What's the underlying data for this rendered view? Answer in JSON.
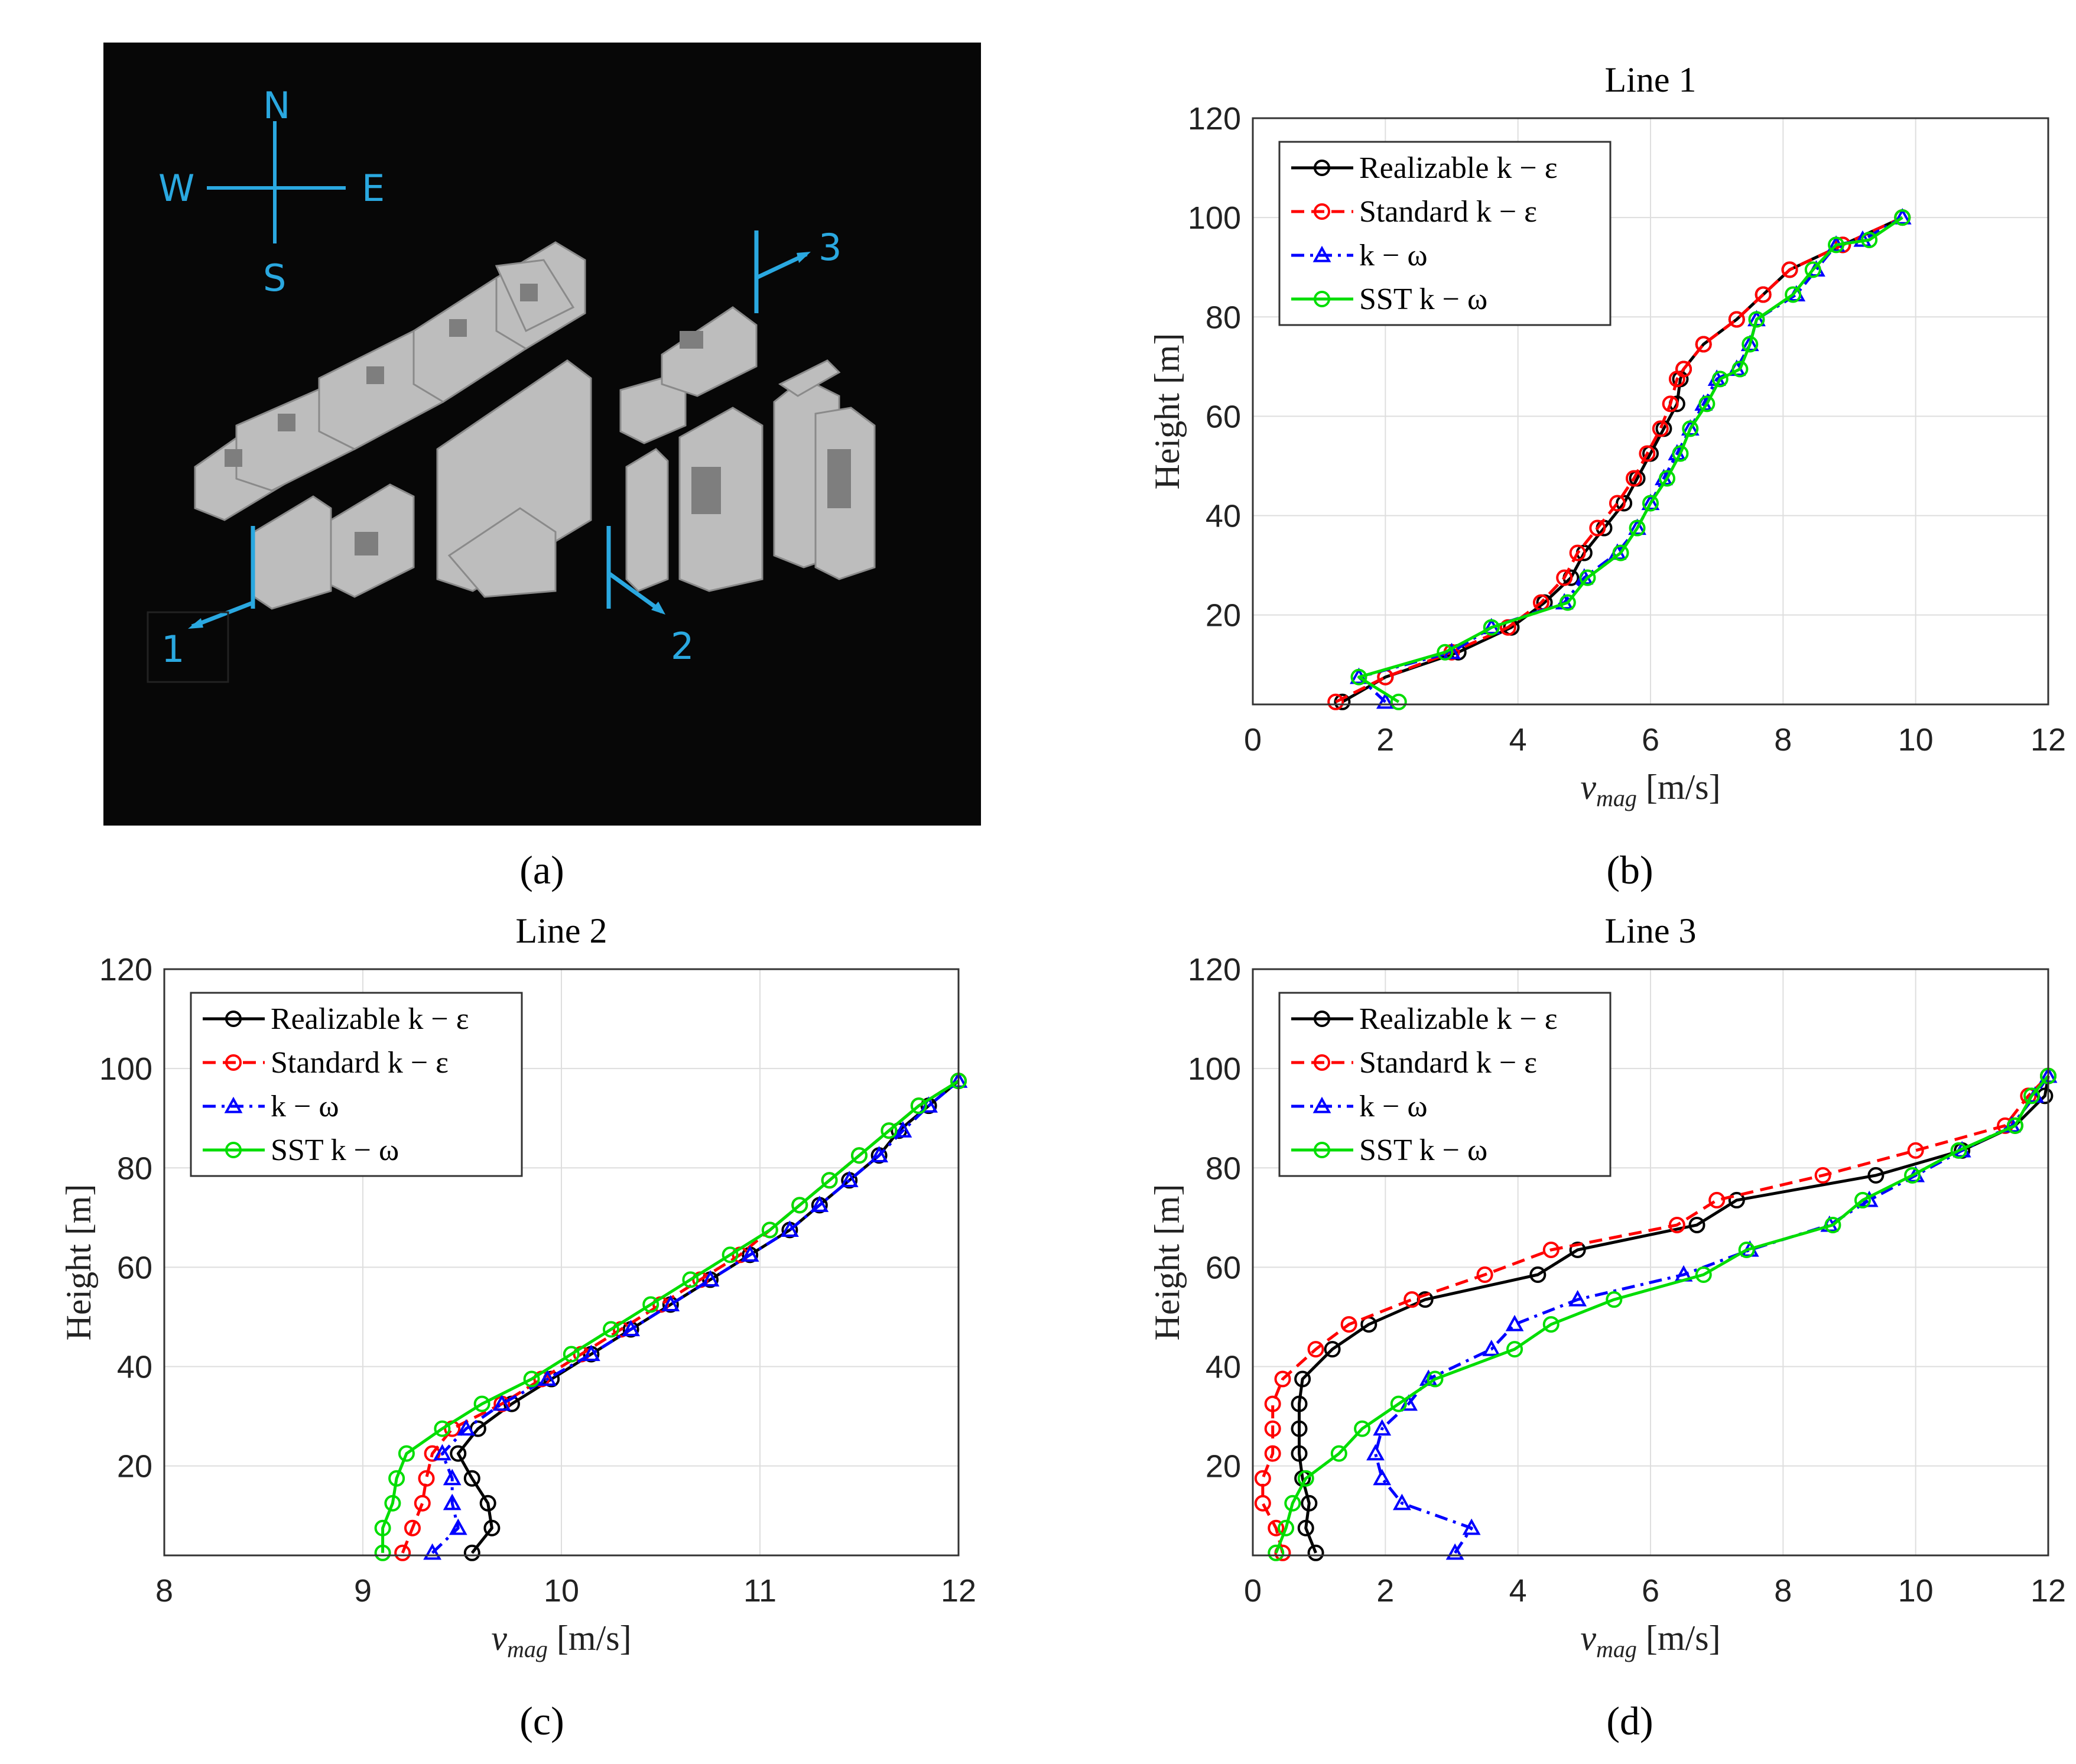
{
  "panels": {
    "a": "(a)",
    "b": "(b)",
    "c": "(c)",
    "d": "(d)"
  },
  "scene": {
    "compass": {
      "n": "N",
      "s": "S",
      "e": "E",
      "w": "W"
    },
    "lines": [
      "1",
      "2",
      "3"
    ],
    "color": "#2aa8e0"
  },
  "legend": [
    {
      "name": "Realizable k − ε",
      "color": "#000000",
      "dash": "solid",
      "marker": "circle"
    },
    {
      "name": "Standard k − ε",
      "color": "#ff0000",
      "dash": "dashed",
      "marker": "circle"
    },
    {
      "name": "k − ω",
      "color": "#0000ff",
      "dash": "dashdot",
      "marker": "triangle"
    },
    {
      "name": "SST k − ω",
      "color": "#00dd00",
      "dash": "solid",
      "marker": "circle"
    }
  ],
  "chart_data": [
    {
      "type": "line",
      "title": "Line 1",
      "xlabel": "v_mag [m/s]",
      "ylabel": "Height [m]",
      "xlim": [
        0,
        12
      ],
      "ylim": [
        2,
        120
      ],
      "xticks": [
        0,
        2,
        4,
        6,
        8,
        10,
        12
      ],
      "yticks": [
        20,
        40,
        60,
        80,
        100,
        120
      ],
      "series": [
        {
          "name": "Realizable k − ε",
          "x": [
            1.35,
            2.0,
            3.1,
            3.9,
            4.4,
            4.8,
            5.0,
            5.3,
            5.6,
            5.8,
            6.0,
            6.2,
            6.4,
            6.45,
            6.5,
            6.8,
            7.3,
            7.7,
            8.1,
            8.9,
            9.8
          ],
          "y": [
            2.5,
            7.5,
            12.5,
            17.5,
            22.5,
            27.5,
            32.5,
            37.5,
            42.5,
            47.5,
            52.5,
            57.5,
            62.5,
            67.5,
            69.5,
            74.5,
            79.5,
            84.5,
            89.5,
            94.5,
            100
          ]
        },
        {
          "name": "Standard k − ε",
          "x": [
            1.25,
            2.0,
            3.0,
            3.85,
            4.35,
            4.7,
            4.9,
            5.2,
            5.5,
            5.75,
            5.95,
            6.15,
            6.3,
            6.4,
            6.5,
            6.8,
            7.3,
            7.7,
            8.1,
            8.9,
            9.8
          ],
          "y": [
            2.5,
            7.5,
            12.5,
            17.5,
            22.5,
            27.5,
            32.5,
            37.5,
            42.5,
            47.5,
            52.5,
            57.5,
            62.5,
            67.5,
            69.5,
            74.5,
            79.5,
            84.5,
            89.5,
            94.5,
            100
          ]
        },
        {
          "name": "k − ω",
          "x": [
            2.0,
            1.6,
            3.0,
            3.6,
            4.7,
            5.0,
            5.5,
            5.8,
            6.0,
            6.2,
            6.4,
            6.6,
            6.8,
            7.0,
            7.3,
            7.5,
            7.6,
            8.2,
            8.5,
            8.8,
            9.2,
            9.8
          ],
          "y": [
            2.5,
            7.5,
            12.5,
            17.5,
            22.5,
            27.5,
            32.5,
            37.5,
            42.5,
            47.5,
            52.5,
            57.5,
            62.5,
            67.5,
            69.5,
            74.5,
            79.5,
            84.5,
            89.5,
            94.5,
            95.5,
            100
          ]
        },
        {
          "name": "SST k − ω",
          "x": [
            2.2,
            1.6,
            2.9,
            3.6,
            4.75,
            5.05,
            5.55,
            5.8,
            6.0,
            6.25,
            6.45,
            6.6,
            6.85,
            7.05,
            7.35,
            7.5,
            7.6,
            8.15,
            8.45,
            8.8,
            9.3,
            9.8
          ],
          "y": [
            2.5,
            7.5,
            12.5,
            17.5,
            22.5,
            27.5,
            32.5,
            37.5,
            42.5,
            47.5,
            52.5,
            57.5,
            62.5,
            67.5,
            69.5,
            74.5,
            79.5,
            84.5,
            89.5,
            94.5,
            95.5,
            100
          ]
        }
      ]
    },
    {
      "type": "line",
      "title": "Line 2",
      "xlabel": "v_mag [m/s]",
      "ylabel": "Height [m]",
      "xlim": [
        8,
        12
      ],
      "ylim": [
        2,
        120
      ],
      "xticks": [
        8,
        9,
        10,
        11,
        12
      ],
      "yticks": [
        20,
        40,
        60,
        80,
        100,
        120
      ],
      "series": [
        {
          "name": "Realizable k − ε",
          "x": [
            9.55,
            9.65,
            9.63,
            9.55,
            9.48,
            9.58,
            9.75,
            9.95,
            10.15,
            10.35,
            10.55,
            10.75,
            10.95,
            11.15,
            11.3,
            11.45,
            11.6,
            11.7,
            11.85,
            12.0
          ],
          "y": [
            2.5,
            7.5,
            12.5,
            17.5,
            22.5,
            27.5,
            32.5,
            37.5,
            42.5,
            47.5,
            52.5,
            57.5,
            62.5,
            67.5,
            72.5,
            77.5,
            82.5,
            87.5,
            92.5,
            97.5
          ]
        },
        {
          "name": "Standard k − ε",
          "x": [
            9.2,
            9.25,
            9.3,
            9.32,
            9.35,
            9.45,
            9.7,
            9.9,
            10.1,
            10.3,
            10.5,
            10.7,
            10.9,
            11.05,
            11.2,
            11.35,
            11.5,
            11.65,
            11.8,
            12.0
          ],
          "y": [
            2.5,
            7.5,
            12.5,
            17.5,
            22.5,
            27.5,
            32.5,
            37.5,
            42.5,
            47.5,
            52.5,
            57.5,
            62.5,
            67.5,
            72.5,
            77.5,
            82.5,
            87.5,
            92.5,
            97.5
          ]
        },
        {
          "name": "k − ω",
          "x": [
            9.35,
            9.48,
            9.45,
            9.45,
            9.4,
            9.52,
            9.7,
            9.93,
            10.15,
            10.35,
            10.55,
            10.75,
            10.95,
            11.15,
            11.3,
            11.45,
            11.6,
            11.72,
            11.85,
            12.0
          ],
          "y": [
            2.5,
            7.5,
            12.5,
            17.5,
            22.5,
            27.5,
            32.5,
            37.5,
            42.5,
            47.5,
            52.5,
            57.5,
            62.5,
            67.5,
            72.5,
            77.5,
            82.5,
            87.5,
            92.5,
            97.5
          ]
        },
        {
          "name": "SST k − ω",
          "x": [
            9.1,
            9.1,
            9.15,
            9.17,
            9.22,
            9.4,
            9.6,
            9.85,
            10.05,
            10.25,
            10.45,
            10.65,
            10.85,
            11.05,
            11.2,
            11.35,
            11.5,
            11.65,
            11.8,
            12.0
          ],
          "y": [
            2.5,
            7.5,
            12.5,
            17.5,
            22.5,
            27.5,
            32.5,
            37.5,
            42.5,
            47.5,
            52.5,
            57.5,
            62.5,
            67.5,
            72.5,
            77.5,
            82.5,
            87.5,
            92.5,
            97.5
          ]
        }
      ]
    },
    {
      "type": "line",
      "title": "Line 3",
      "xlabel": "v_mag [m/s]",
      "ylabel": "Height [m]",
      "xlim": [
        0,
        12
      ],
      "ylim": [
        2,
        120
      ],
      "xticks": [
        0,
        2,
        4,
        6,
        8,
        10,
        12
      ],
      "yticks": [
        20,
        40,
        60,
        80,
        100,
        120
      ],
      "series": [
        {
          "name": "Realizable k − ε",
          "x": [
            0.95,
            0.8,
            0.85,
            0.75,
            0.7,
            0.7,
            0.7,
            0.75,
            1.2,
            1.75,
            2.6,
            4.3,
            4.9,
            6.7,
            7.3,
            9.4,
            10.7,
            11.5,
            11.95,
            12.0
          ],
          "y": [
            2.5,
            7.5,
            12.5,
            17.5,
            22.5,
            27.5,
            32.5,
            37.5,
            43.5,
            48.5,
            53.5,
            58.5,
            63.5,
            68.5,
            73.5,
            78.5,
            83.5,
            88.5,
            94.5,
            98.5
          ]
        },
        {
          "name": "Standard k − ε",
          "x": [
            0.45,
            0.35,
            0.15,
            0.15,
            0.3,
            0.3,
            0.3,
            0.45,
            0.95,
            1.45,
            2.4,
            3.5,
            4.5,
            6.4,
            7.0,
            8.6,
            10.0,
            11.35,
            11.7,
            12.0
          ],
          "y": [
            2.5,
            7.5,
            12.5,
            17.5,
            22.5,
            27.5,
            32.5,
            37.5,
            43.5,
            48.5,
            53.5,
            58.5,
            63.5,
            68.5,
            73.5,
            78.5,
            83.5,
            88.5,
            94.5,
            98.5
          ]
        },
        {
          "name": "k − ω",
          "x": [
            3.05,
            3.3,
            2.25,
            1.95,
            1.85,
            1.95,
            2.35,
            2.65,
            3.6,
            3.95,
            4.9,
            6.5,
            7.5,
            8.7,
            9.3,
            10.0,
            10.7,
            11.45,
            11.8,
            12.0
          ],
          "y": [
            2.5,
            7.5,
            12.5,
            17.5,
            22.5,
            27.5,
            32.5,
            37.5,
            43.5,
            48.5,
            53.5,
            58.5,
            63.5,
            68.5,
            73.5,
            78.5,
            83.5,
            88.5,
            94.5,
            98.5
          ]
        },
        {
          "name": "SST k − ω",
          "x": [
            0.35,
            0.5,
            0.6,
            0.8,
            1.3,
            1.65,
            2.2,
            2.75,
            3.95,
            4.5,
            5.45,
            6.8,
            7.45,
            8.75,
            9.2,
            9.95,
            10.65,
            11.5,
            11.75,
            12.0
          ],
          "y": [
            2.5,
            7.5,
            12.5,
            17.5,
            22.5,
            27.5,
            32.5,
            37.5,
            43.5,
            48.5,
            53.5,
            58.5,
            63.5,
            68.5,
            73.5,
            78.5,
            83.5,
            88.5,
            94.5,
            98.5
          ]
        }
      ]
    }
  ]
}
